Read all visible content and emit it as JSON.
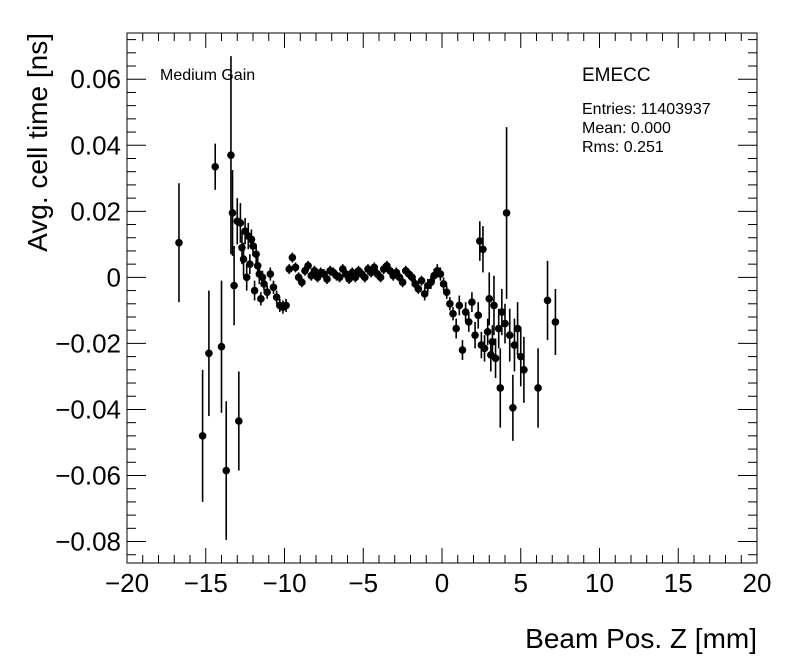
{
  "chart_data": {
    "type": "scatter",
    "title": "",
    "xlabel": "Beam Pos. Z [mm]",
    "ylabel": "Avg. cell time [ns]",
    "xlim": [
      -20,
      20
    ],
    "ylim": [
      -0.0865,
      0.074
    ],
    "x_ticks": [
      -20,
      -15,
      -10,
      -5,
      0,
      5,
      10,
      15,
      20
    ],
    "x_tick_labels": [
      "−20",
      "−15",
      "−10",
      "−5",
      "0",
      "5",
      "10",
      "15",
      "20"
    ],
    "y_ticks": [
      -0.08,
      -0.06,
      -0.04,
      -0.02,
      0,
      0.02,
      0.04,
      0.06
    ],
    "y_tick_labels": [
      "−0.08",
      "−0.06",
      "−0.04",
      "−0.02",
      "0",
      "0.02",
      "0.04",
      "0.06"
    ],
    "grid": false,
    "annotations": {
      "gain": "Medium Gain",
      "detector": "EMECC",
      "entries": "Entries: 11403937",
      "mean": "Mean: 0.000",
      "rms": "Rms: 0.251"
    },
    "series": [
      {
        "marker": "filled-circle",
        "color": "#000000",
        "x": [
          -16.7,
          -15.2,
          -14.8,
          -14.4,
          -14.0,
          -13.7,
          -13.4,
          -13.3,
          -13.2,
          -13.0,
          -12.9,
          -12.8,
          -12.7,
          -12.6,
          -12.5,
          -12.4,
          -12.3,
          -12.2,
          -12.1,
          -12.0,
          -11.9,
          -11.8,
          -11.7,
          -11.6,
          -11.5,
          -11.4,
          -11.3,
          -11.1,
          -10.9,
          -10.7,
          -10.5,
          -10.3,
          -10.1,
          -9.9,
          -9.7,
          -9.5,
          -9.3,
          -9.1,
          -8.9,
          -8.7,
          -8.5,
          -8.3,
          -8.1,
          -7.9,
          -7.7,
          -7.5,
          -7.3,
          -7.1,
          -6.9,
          -6.7,
          -6.5,
          -6.3,
          -6.1,
          -5.9,
          -5.7,
          -5.5,
          -5.3,
          -5.1,
          -4.9,
          -4.7,
          -4.5,
          -4.3,
          -4.1,
          -3.9,
          -3.7,
          -3.5,
          -3.3,
          -3.1,
          -2.9,
          -2.7,
          -2.5,
          -2.3,
          -2.1,
          -1.9,
          -1.7,
          -1.5,
          -1.3,
          -1.1,
          -0.9,
          -0.7,
          -0.5,
          -0.3,
          -0.1,
          0.1,
          0.3,
          0.5,
          0.7,
          0.9,
          1.1,
          1.3,
          1.5,
          1.7,
          1.9,
          2.1,
          2.3,
          2.5,
          2.7,
          2.9,
          3.1,
          3.2,
          3.4,
          3.6,
          3.8,
          4.0,
          4.3,
          4.6,
          4.8,
          5.0,
          5.2,
          6.1,
          6.7,
          7.2,
          2.4,
          2.6,
          3.0,
          3.3,
          3.7,
          4.1,
          4.5
        ],
        "y": [
          0.0105,
          -0.048,
          -0.023,
          0.0335,
          -0.021,
          -0.0585,
          0.037,
          0.0195,
          -0.0025,
          0.017,
          -0.0435,
          0.0165,
          0.009,
          0.0055,
          0.014,
          0.0,
          0.0125,
          0.004,
          0.0115,
          0.0095,
          -0.004,
          0.007,
          0.0035,
          0.001,
          -0.0065,
          0.0,
          -0.002,
          -0.0045,
          0.001,
          -0.003,
          -0.006,
          -0.0085,
          -0.009,
          -0.0085,
          0.0025,
          0.006,
          0.003,
          0.0,
          -0.0015,
          0.002,
          0.0035,
          0.0005,
          0.002,
          0.0,
          0.0015,
          0.001,
          -0.0005,
          0.002,
          0.0015,
          0.0005,
          0.0,
          0.0025,
          0.001,
          -0.0005,
          0.0015,
          0.0,
          0.002,
          0.001,
          0.0,
          0.0025,
          0.0015,
          0.003,
          0.001,
          0.0,
          0.0025,
          0.0035,
          0.002,
          0.0005,
          0.0015,
          0.0,
          -0.0015,
          0.002,
          0.001,
          0.0,
          -0.002,
          -0.0035,
          -0.001,
          -0.005,
          -0.0025,
          -0.0015,
          0.0005,
          0.002,
          0.001,
          -0.002,
          -0.0045,
          -0.008,
          -0.011,
          -0.0155,
          -0.0085,
          -0.022,
          -0.0105,
          -0.0135,
          -0.0075,
          -0.0175,
          -0.0115,
          -0.0205,
          -0.0215,
          -0.0165,
          -0.0235,
          -0.0195,
          -0.0245,
          -0.0155,
          -0.0105,
          -0.014,
          -0.0175,
          -0.0205,
          -0.0155,
          -0.024,
          -0.028,
          -0.0335,
          -0.007,
          -0.0135,
          0.011,
          0.0085,
          -0.0065,
          -0.0085,
          -0.0335,
          0.0195,
          -0.0395
        ],
        "yerr": [
          0.018,
          0.02,
          0.019,
          0.007,
          0.02,
          0.021,
          0.03,
          0.013,
          0.012,
          0.007,
          0.015,
          0.006,
          0.005,
          0.005,
          0.004,
          0.004,
          0.004,
          0.003,
          0.003,
          0.003,
          0.003,
          0.003,
          0.003,
          0.003,
          0.002,
          0.002,
          0.002,
          0.002,
          0.002,
          0.002,
          0.002,
          0.002,
          0.002,
          0.002,
          0.0015,
          0.0015,
          0.0015,
          0.0015,
          0.0015,
          0.0015,
          0.0015,
          0.0015,
          0.0015,
          0.0015,
          0.0015,
          0.0015,
          0.0015,
          0.0015,
          0.0015,
          0.0015,
          0.0015,
          0.0015,
          0.0015,
          0.0015,
          0.0015,
          0.0015,
          0.0015,
          0.0015,
          0.0015,
          0.0015,
          0.0015,
          0.0015,
          0.0015,
          0.0015,
          0.0015,
          0.0015,
          0.0015,
          0.0015,
          0.0015,
          0.0015,
          0.0015,
          0.0015,
          0.0015,
          0.0015,
          0.0015,
          0.0015,
          0.0015,
          0.002,
          0.002,
          0.002,
          0.002,
          0.002,
          0.002,
          0.002,
          0.002,
          0.002,
          0.002,
          0.003,
          0.003,
          0.003,
          0.003,
          0.003,
          0.003,
          0.004,
          0.004,
          0.004,
          0.004,
          0.004,
          0.005,
          0.005,
          0.006,
          0.006,
          0.007,
          0.006,
          0.008,
          0.008,
          0.008,
          0.009,
          0.01,
          0.012,
          0.012,
          0.01,
          0.006,
          0.007,
          0.008,
          0.009,
          0.012,
          0.026,
          0.01
        ]
      }
    ]
  }
}
